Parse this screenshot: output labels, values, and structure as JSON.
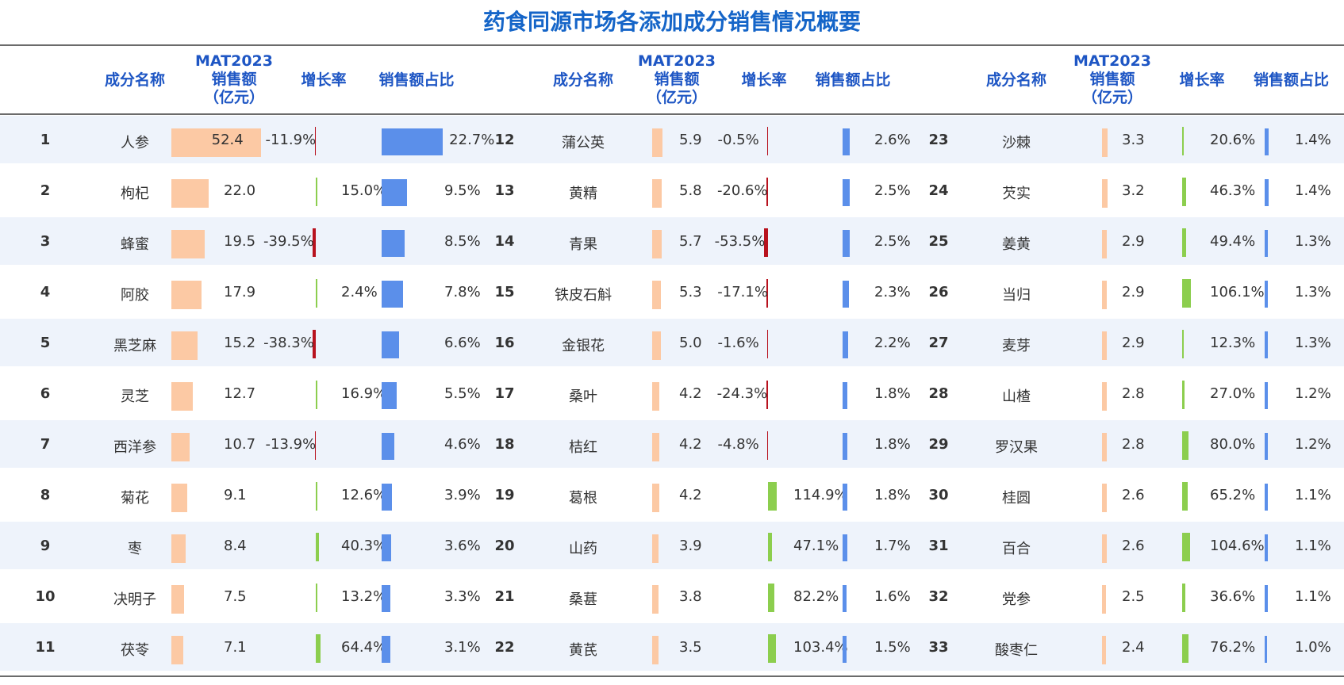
{
  "title": "药食同源市场各添加成分销售情况概要",
  "headers": {
    "name": "成分名称",
    "mat_line1": "MAT2023",
    "mat_line2": "销售额",
    "mat_line3": "（亿元）",
    "growth": "增长率",
    "share": "销售额占比"
  },
  "colors": {
    "sales_bar": "#fcc9a4",
    "share_bar": "#5b8fea",
    "growth_positive": "#8cce4e",
    "growth_negative": "#b8121e",
    "title": "#1565c8",
    "row_stripe": "#eef3fb"
  },
  "chart_data": {
    "type": "table",
    "title": "药食同源市场各添加成分销售情况概要",
    "columns": [
      "成分名称",
      "MAT2023销售额（亿元）",
      "增长率",
      "销售额占比"
    ],
    "rows": [
      {
        "rank": "1",
        "name": "人参",
        "sales": 52.4,
        "sales_label": "52.4",
        "growth": -11.9,
        "growth_label": "-11.9%",
        "share": 22.7,
        "share_label": "22.7%"
      },
      {
        "rank": "2",
        "name": "枸杞",
        "sales": 22.0,
        "sales_label": "22.0",
        "growth": 15.0,
        "growth_label": "15.0%",
        "share": 9.5,
        "share_label": "9.5%"
      },
      {
        "rank": "3",
        "name": "蜂蜜",
        "sales": 19.5,
        "sales_label": "19.5",
        "growth": -39.5,
        "growth_label": "-39.5%",
        "share": 8.5,
        "share_label": "8.5%"
      },
      {
        "rank": "4",
        "name": "阿胶",
        "sales": 17.9,
        "sales_label": "17.9",
        "growth": 2.4,
        "growth_label": "2.4%",
        "share": 7.8,
        "share_label": "7.8%"
      },
      {
        "rank": "5",
        "name": "黑芝麻",
        "sales": 15.2,
        "sales_label": "15.2",
        "growth": -38.3,
        "growth_label": "-38.3%",
        "share": 6.6,
        "share_label": "6.6%"
      },
      {
        "rank": "6",
        "name": "灵芝",
        "sales": 12.7,
        "sales_label": "12.7",
        "growth": 16.9,
        "growth_label": "16.9%",
        "share": 5.5,
        "share_label": "5.5%"
      },
      {
        "rank": "7",
        "name": "西洋参",
        "sales": 10.7,
        "sales_label": "10.7",
        "growth": -13.9,
        "growth_label": "-13.9%",
        "share": 4.6,
        "share_label": "4.6%"
      },
      {
        "rank": "8",
        "name": "菊花",
        "sales": 9.1,
        "sales_label": "9.1",
        "growth": 12.6,
        "growth_label": "12.6%",
        "share": 3.9,
        "share_label": "3.9%"
      },
      {
        "rank": "9",
        "name": "枣",
        "sales": 8.4,
        "sales_label": "8.4",
        "growth": 40.3,
        "growth_label": "40.3%",
        "share": 3.6,
        "share_label": "3.6%"
      },
      {
        "rank": "10",
        "name": "决明子",
        "sales": 7.5,
        "sales_label": "7.5",
        "growth": 13.2,
        "growth_label": "13.2%",
        "share": 3.3,
        "share_label": "3.3%"
      },
      {
        "rank": "11",
        "name": "茯苓",
        "sales": 7.1,
        "sales_label": "7.1",
        "growth": 64.4,
        "growth_label": "64.4%",
        "share": 3.1,
        "share_label": "3.1%"
      },
      {
        "rank": "12",
        "name": "蒲公英",
        "sales": 5.9,
        "sales_label": "5.9",
        "growth": -0.5,
        "growth_label": "-0.5%",
        "share": 2.6,
        "share_label": "2.6%"
      },
      {
        "rank": "13",
        "name": "黄精",
        "sales": 5.8,
        "sales_label": "5.8",
        "growth": -20.6,
        "growth_label": "-20.6%",
        "share": 2.5,
        "share_label": "2.5%"
      },
      {
        "rank": "14",
        "name": "青果",
        "sales": 5.7,
        "sales_label": "5.7",
        "growth": -53.5,
        "growth_label": "-53.5%",
        "share": 2.5,
        "share_label": "2.5%"
      },
      {
        "rank": "15",
        "name": "铁皮石斛",
        "sales": 5.3,
        "sales_label": "5.3",
        "growth": -17.1,
        "growth_label": "-17.1%",
        "share": 2.3,
        "share_label": "2.3%"
      },
      {
        "rank": "16",
        "name": "金银花",
        "sales": 5.0,
        "sales_label": "5.0",
        "growth": -1.6,
        "growth_label": "-1.6%",
        "share": 2.2,
        "share_label": "2.2%"
      },
      {
        "rank": "17",
        "name": "桑叶",
        "sales": 4.2,
        "sales_label": "4.2",
        "growth": -24.3,
        "growth_label": "-24.3%",
        "share": 1.8,
        "share_label": "1.8%"
      },
      {
        "rank": "18",
        "name": "桔红",
        "sales": 4.2,
        "sales_label": "4.2",
        "growth": -4.8,
        "growth_label": "-4.8%",
        "share": 1.8,
        "share_label": "1.8%"
      },
      {
        "rank": "19",
        "name": "葛根",
        "sales": 4.2,
        "sales_label": "4.2",
        "growth": 114.9,
        "growth_label": "114.9%",
        "share": 1.8,
        "share_label": "1.8%"
      },
      {
        "rank": "20",
        "name": "山药",
        "sales": 3.9,
        "sales_label": "3.9",
        "growth": 47.1,
        "growth_label": "47.1%",
        "share": 1.7,
        "share_label": "1.7%"
      },
      {
        "rank": "21",
        "name": "桑葚",
        "sales": 3.8,
        "sales_label": "3.8",
        "growth": 82.2,
        "growth_label": "82.2%",
        "share": 1.6,
        "share_label": "1.6%"
      },
      {
        "rank": "22",
        "name": "黄芪",
        "sales": 3.5,
        "sales_label": "3.5",
        "growth": 103.4,
        "growth_label": "103.4%",
        "share": 1.5,
        "share_label": "1.5%"
      },
      {
        "rank": "23",
        "name": "沙棘",
        "sales": 3.3,
        "sales_label": "3.3",
        "growth": 20.6,
        "growth_label": "20.6%",
        "share": 1.4,
        "share_label": "1.4%"
      },
      {
        "rank": "24",
        "name": "芡实",
        "sales": 3.2,
        "sales_label": "3.2",
        "growth": 46.3,
        "growth_label": "46.3%",
        "share": 1.4,
        "share_label": "1.4%"
      },
      {
        "rank": "25",
        "name": "姜黄",
        "sales": 2.9,
        "sales_label": "2.9",
        "growth": 49.4,
        "growth_label": "49.4%",
        "share": 1.3,
        "share_label": "1.3%"
      },
      {
        "rank": "26",
        "name": "当归",
        "sales": 2.9,
        "sales_label": "2.9",
        "growth": 106.1,
        "growth_label": "106.1%",
        "share": 1.3,
        "share_label": "1.3%"
      },
      {
        "rank": "27",
        "name": "麦芽",
        "sales": 2.9,
        "sales_label": "2.9",
        "growth": 12.3,
        "growth_label": "12.3%",
        "share": 1.3,
        "share_label": "1.3%"
      },
      {
        "rank": "28",
        "name": "山楂",
        "sales": 2.8,
        "sales_label": "2.8",
        "growth": 27.0,
        "growth_label": "27.0%",
        "share": 1.2,
        "share_label": "1.2%"
      },
      {
        "rank": "29",
        "name": "罗汉果",
        "sales": 2.8,
        "sales_label": "2.8",
        "growth": 80.0,
        "growth_label": "80.0%",
        "share": 1.2,
        "share_label": "1.2%"
      },
      {
        "rank": "30",
        "name": "桂圆",
        "sales": 2.6,
        "sales_label": "2.6",
        "growth": 65.2,
        "growth_label": "65.2%",
        "share": 1.1,
        "share_label": "1.1%"
      },
      {
        "rank": "31",
        "name": "百合",
        "sales": 2.6,
        "sales_label": "2.6",
        "growth": 104.6,
        "growth_label": "104.6%",
        "share": 1.1,
        "share_label": "1.1%"
      },
      {
        "rank": "32",
        "name": "党参",
        "sales": 2.5,
        "sales_label": "2.5",
        "growth": 36.6,
        "growth_label": "36.6%",
        "share": 1.1,
        "share_label": "1.1%"
      },
      {
        "rank": "33",
        "name": "酸枣仁",
        "sales": 2.4,
        "sales_label": "2.4",
        "growth": 76.2,
        "growth_label": "76.2%",
        "share": 1.0,
        "share_label": "1.0%"
      }
    ]
  }
}
